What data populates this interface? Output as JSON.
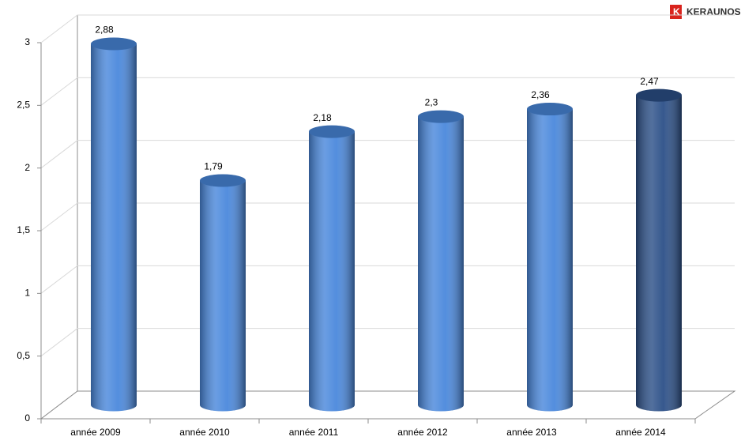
{
  "chart_data": {
    "type": "bar3d",
    "source": "KERAUNOS",
    "categories": [
      "année 2009",
      "année 2010",
      "année 2011",
      "année 2012",
      "année 2013",
      "année 2014"
    ],
    "values": [
      2.88,
      1.79,
      2.18,
      2.3,
      2.36,
      2.47
    ],
    "value_labels": [
      "2,88",
      "1,79",
      "2,18",
      "2,3",
      "2,36",
      "2,47"
    ],
    "colors": [
      "#4a88dc",
      "#4a88dc",
      "#4a88dc",
      "#4a88dc",
      "#4a88dc",
      "#2c5088"
    ],
    "ylim": [
      0,
      3
    ],
    "yticks": [
      0,
      {
        "value": 0.5,
        "label": "0,5"
      },
      1,
      {
        "value": 1.5,
        "label": "1,5"
      },
      2,
      {
        "value": 2.5,
        "label": "2,5"
      },
      3
    ],
    "grid": true
  }
}
